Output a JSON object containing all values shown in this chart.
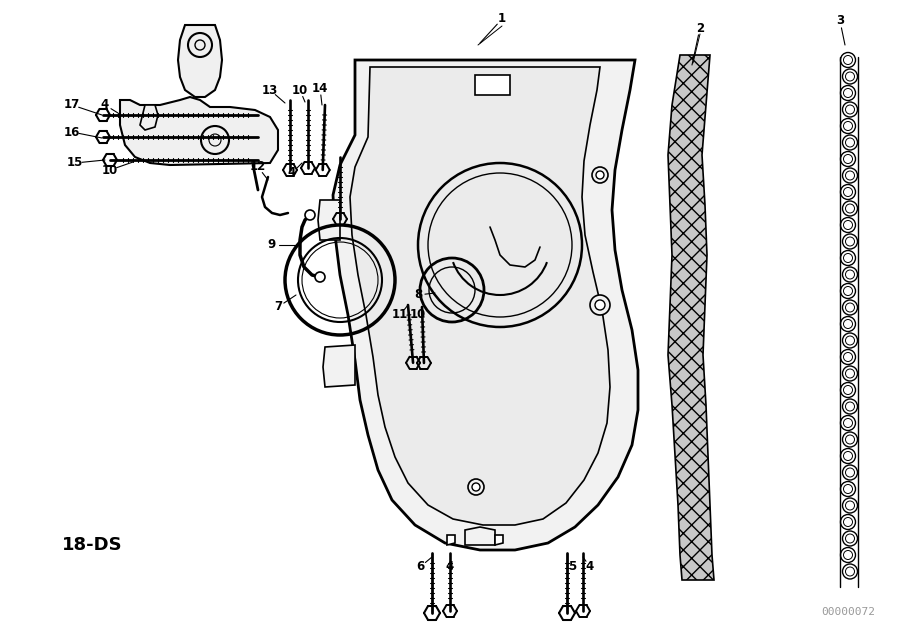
{
  "background_color": "#ffffff",
  "bottom_left_label": "18-DS",
  "bottom_right_label": "00000072",
  "figsize": [
    9.0,
    6.35
  ],
  "dpi": 100
}
